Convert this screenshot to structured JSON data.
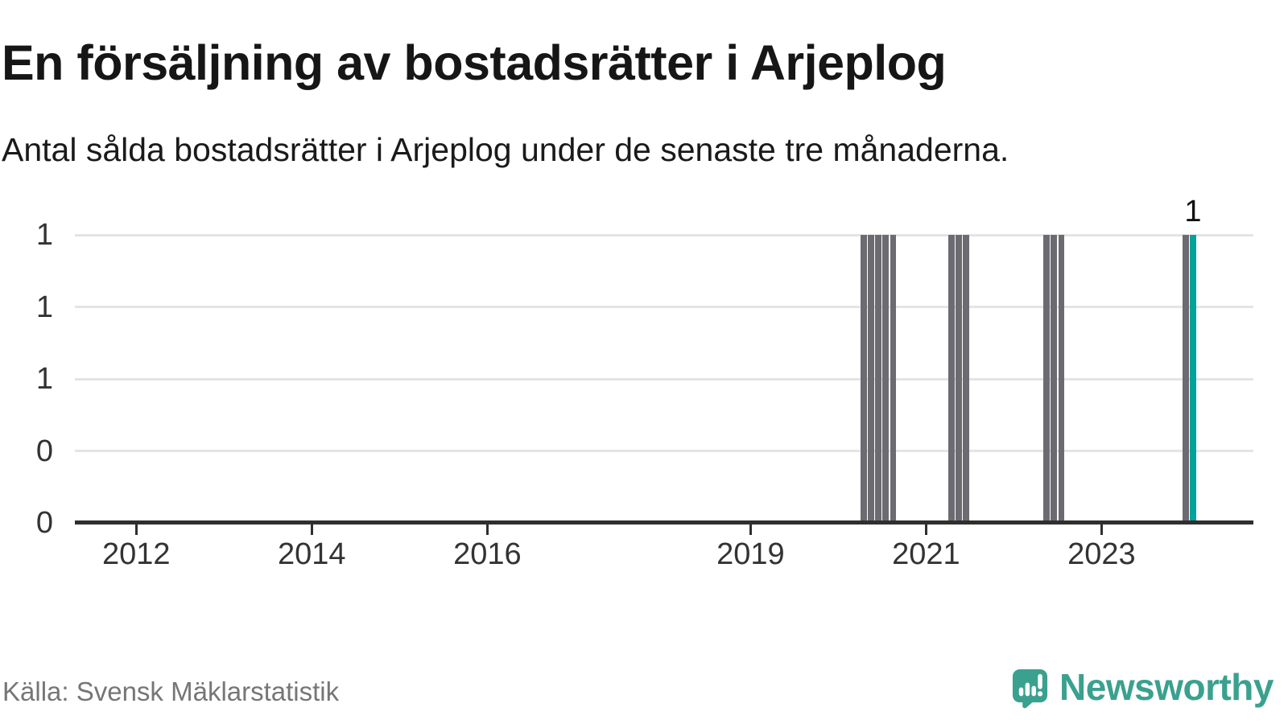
{
  "header": {
    "title": "En försäljning av bostadsrätter i Arjeplog",
    "subtitle": "Antal sålda bostadsrätter i Arjeplog under de senaste tre månaderna."
  },
  "footer": {
    "source": "Källa: Svensk Mäklarstatistik",
    "brand": "Newsworthy"
  },
  "colors": {
    "bar_default": "#6b6b71",
    "bar_highlight": "#00a29b",
    "gridline": "#e4e4e4",
    "axis": "#2f2f2f",
    "brand": "#3aa18e",
    "axis_text": "#333333",
    "muted_text": "#767676"
  },
  "chart_data": {
    "type": "bar",
    "title": "En försäljning av bostadsrätter i Arjeplog",
    "xlabel": "",
    "ylabel": "",
    "grid": "horizontal",
    "legend": "none",
    "x_axis": {
      "range": [
        2011.3,
        2024.73
      ],
      "ticks": [
        {
          "value": 2012,
          "label": "2012"
        },
        {
          "value": 2014,
          "label": "2014"
        },
        {
          "value": 2016,
          "label": "2016"
        },
        {
          "value": 2019,
          "label": "2019"
        },
        {
          "value": 2021,
          "label": "2021"
        },
        {
          "value": 2023,
          "label": "2023"
        }
      ]
    },
    "y_axis": {
      "range": [
        0,
        1
      ],
      "gridlines": [
        {
          "value": 1.0,
          "label": "1"
        },
        {
          "value": 0.75,
          "label": "1"
        },
        {
          "value": 0.5,
          "label": "1"
        },
        {
          "value": 0.25,
          "label": "0"
        },
        {
          "value": 0.0,
          "label": "0"
        }
      ]
    },
    "bar_width_years": 0.073,
    "bars": [
      {
        "x": 2020.292,
        "value": 1,
        "highlight": false
      },
      {
        "x": 2020.375,
        "value": 1,
        "highlight": false
      },
      {
        "x": 2020.458,
        "value": 1,
        "highlight": false
      },
      {
        "x": 2020.542,
        "value": 1,
        "highlight": false
      },
      {
        "x": 2020.625,
        "value": 1,
        "highlight": false
      },
      {
        "x": 2021.292,
        "value": 1,
        "highlight": false
      },
      {
        "x": 2021.375,
        "value": 1,
        "highlight": false
      },
      {
        "x": 2021.458,
        "value": 1,
        "highlight": false
      },
      {
        "x": 2022.375,
        "value": 1,
        "highlight": false
      },
      {
        "x": 2022.458,
        "value": 1,
        "highlight": false
      },
      {
        "x": 2022.542,
        "value": 1,
        "highlight": false
      },
      {
        "x": 2023.958,
        "value": 1,
        "highlight": false
      },
      {
        "x": 2024.042,
        "value": 1,
        "highlight": true
      }
    ],
    "annotation": {
      "text": "1",
      "x": 2024.042,
      "y": 1
    }
  }
}
